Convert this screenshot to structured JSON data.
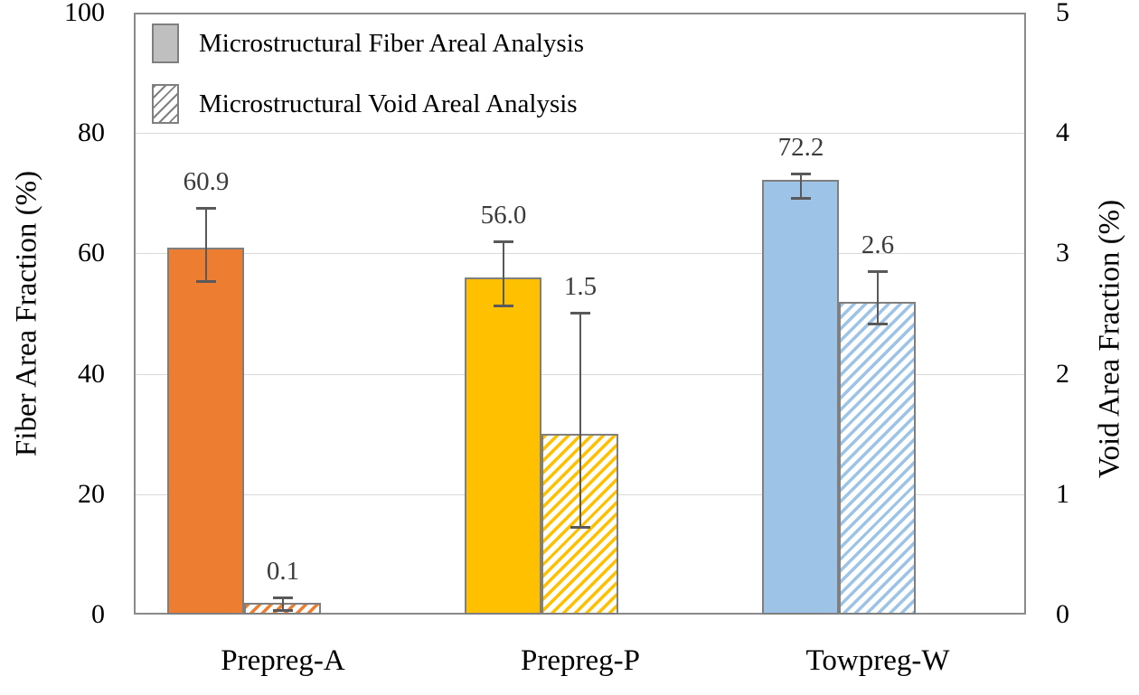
{
  "chart_data": {
    "type": "bar",
    "title": "",
    "categories": [
      "Prepreg-A",
      "Prepreg-P",
      "Towpreg-W"
    ],
    "category_colors": [
      "#ED7D31",
      "#FFC000",
      "#9DC3E6"
    ],
    "series": [
      {
        "name": "Microstructural Fiber Areal Analysis",
        "axis": "left",
        "style": "solid",
        "values": [
          60.9,
          56.0,
          72.2
        ],
        "value_labels": [
          "60.9",
          "56.0",
          "72.2"
        ],
        "error_hi": [
          67.5,
          62.0,
          73.2
        ],
        "error_lo": [
          55.4,
          51.4,
          69.2
        ]
      },
      {
        "name": "Microstructural Void Areal Analysis",
        "axis": "right",
        "style": "hatched",
        "values": [
          0.1,
          1.5,
          2.6
        ],
        "value_labels": [
          "0.1",
          "1.5",
          "2.6"
        ],
        "error_hi": [
          0.14,
          2.51,
          2.85
        ],
        "error_lo": [
          0.04,
          0.73,
          2.42
        ]
      }
    ],
    "left_axis": {
      "label": "Fiber Area Fraction (%)",
      "min": 0,
      "max": 100,
      "ticks": [
        "0",
        "20",
        "40",
        "60",
        "80",
        "100"
      ],
      "tick_values": [
        0,
        20,
        40,
        60,
        80,
        100
      ]
    },
    "right_axis": {
      "label": "Void Area Fraction (%)",
      "min": 0,
      "max": 5,
      "ticks": [
        "0",
        "1",
        "2",
        "3",
        "4",
        "5"
      ],
      "tick_values": [
        0,
        1,
        2,
        3,
        4,
        5
      ]
    },
    "legend": [
      {
        "label": "Microstructural Fiber Areal Analysis",
        "swatch": "solid-gray"
      },
      {
        "label": "Microstructural Void Areal Analysis",
        "swatch": "hatched-gray"
      }
    ],
    "grid": true,
    "legend_position": "top-left-inside",
    "colors": {
      "legend_gray": "#BFBFBF",
      "bar_border": "#7F7F7F",
      "plot_border": "#8A8A8A",
      "gridline": "#D9D9D9",
      "error_bar": "#595959",
      "label_text": "#3B3B3B"
    }
  }
}
